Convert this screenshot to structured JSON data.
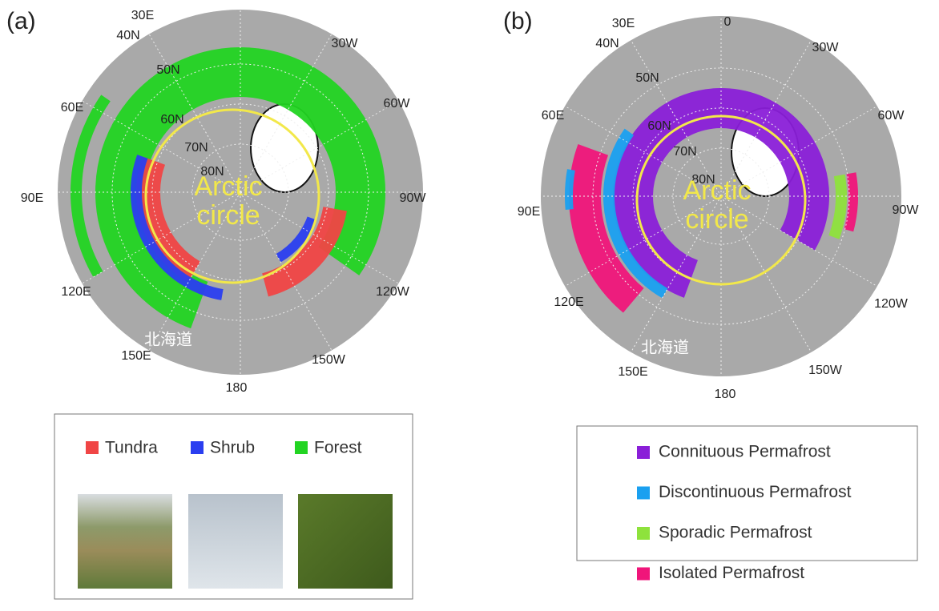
{
  "panels": [
    {
      "label": "(a)",
      "map_labels": [
        "30E",
        "40N",
        "50N",
        "60E",
        "60N",
        "70N",
        "80N",
        "90E",
        "120E",
        "150E",
        "180",
        "150W",
        "120W",
        "90W",
        "60W",
        "30W"
      ],
      "overlay": [
        "Arctic",
        "circle"
      ],
      "place_name": "北海道",
      "legend": [
        {
          "name": "Tundra",
          "color": "#f04545"
        },
        {
          "name": "Shrub",
          "color": "#2a3ef0"
        },
        {
          "name": "Forest",
          "color": "#22d422"
        }
      ]
    },
    {
      "label": "(b)",
      "map_labels": [
        "0",
        "30E",
        "40N",
        "50N",
        "60E",
        "60N",
        "70N",
        "80N",
        "90E",
        "120E",
        "150E",
        "180",
        "150W",
        "120W",
        "90W",
        "60W",
        "30W"
      ],
      "overlay": [
        "Arctic",
        "circle"
      ],
      "place_name": "北海道",
      "legend": [
        {
          "name": "Connituous Permafrost",
          "color": "#8a1fd8"
        },
        {
          "name": "Discontinuous Permafrost",
          "color": "#1aa0f0"
        },
        {
          "name": "Sporadic Permafrost",
          "color": "#8ee23c"
        },
        {
          "name": "Isolated Permafrost",
          "color": "#f0157a"
        }
      ]
    }
  ]
}
